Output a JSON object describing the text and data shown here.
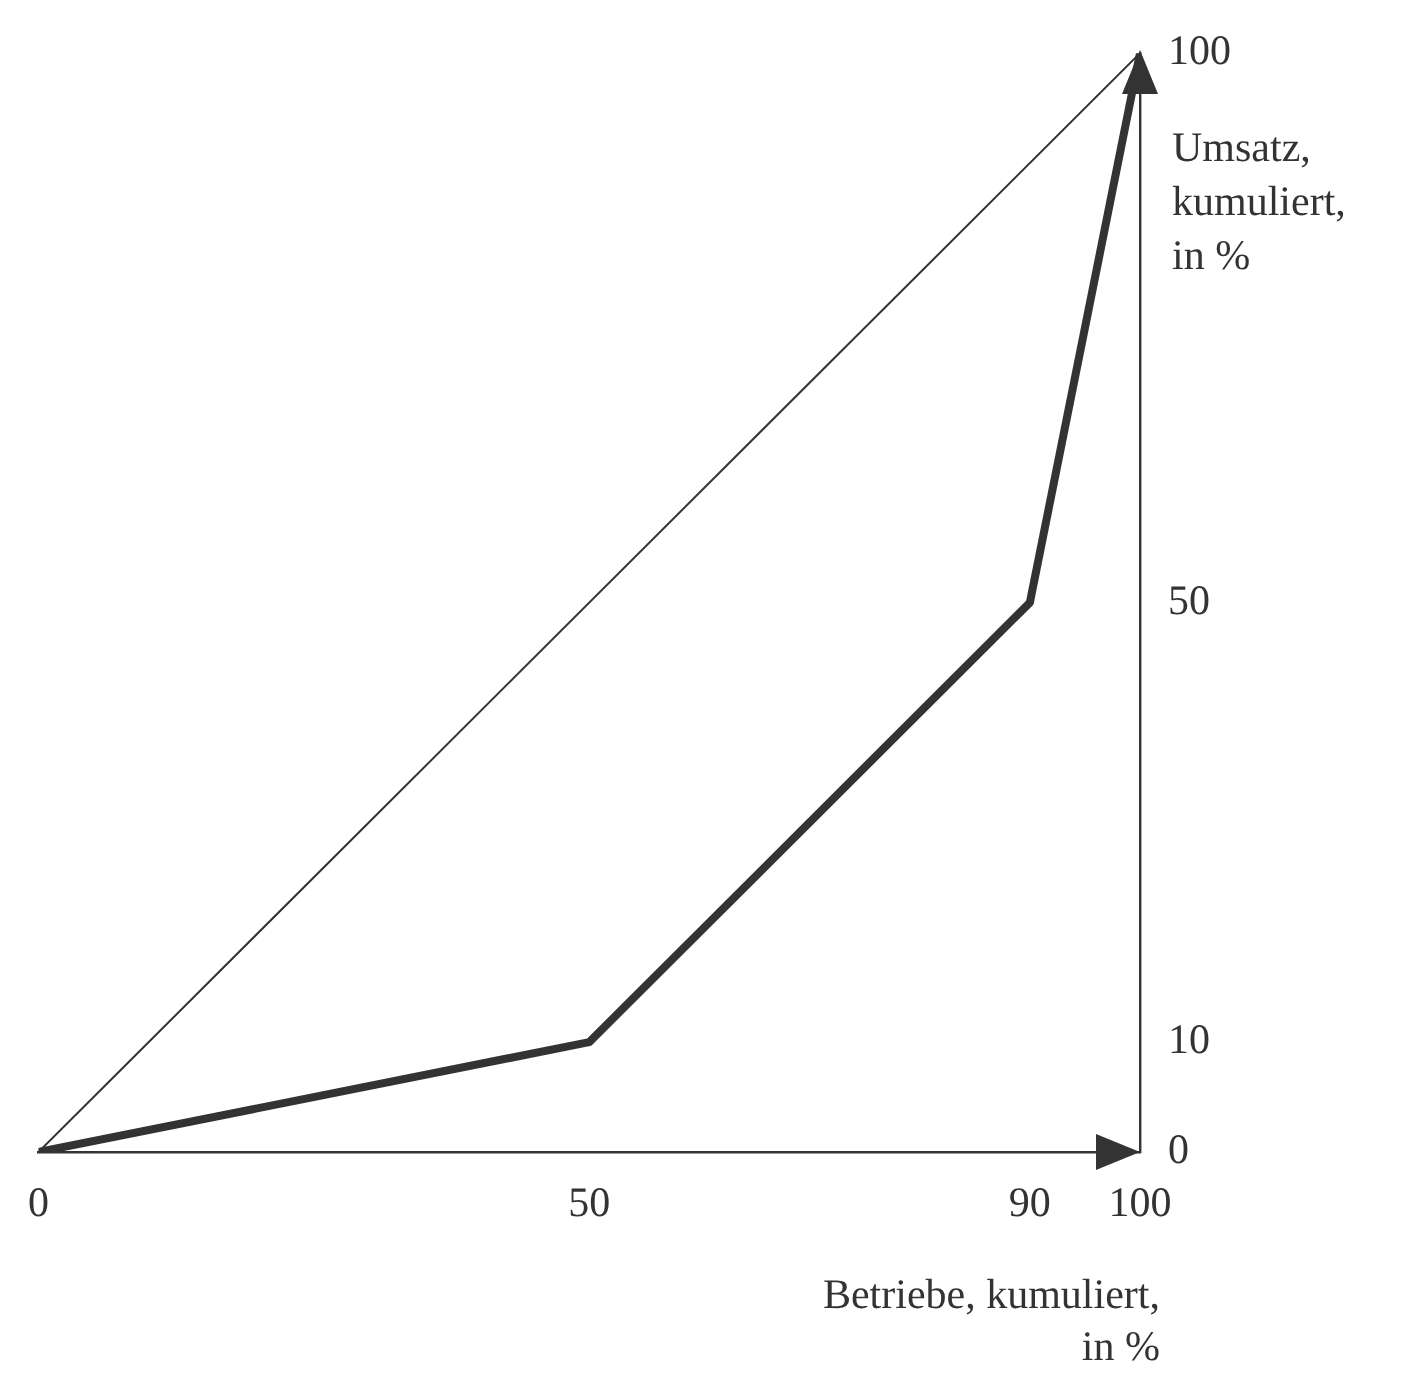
{
  "chart_data": {
    "type": "line",
    "xlabel": "Betriebe, kumuliert, in %",
    "ylabel": "Umsatz, kumuliert, in %",
    "series": [
      {
        "color": "#333333",
        "x": [
          0,
          100
        ],
        "values": [
          0,
          100
        ]
      },
      {
        "color": "#333333",
        "x": [
          0,
          50,
          90,
          100
        ],
        "values": [
          0,
          10,
          50,
          100
        ]
      }
    ],
    "xlim": [
      0,
      100
    ],
    "ylim": [
      0,
      100
    ],
    "xticks": [
      0,
      50,
      90,
      100
    ],
    "yticks": [
      0,
      10,
      50,
      100
    ],
    "grid": false,
    "legend": false,
    "marker": "none",
    "line_style": "solid"
  }
}
